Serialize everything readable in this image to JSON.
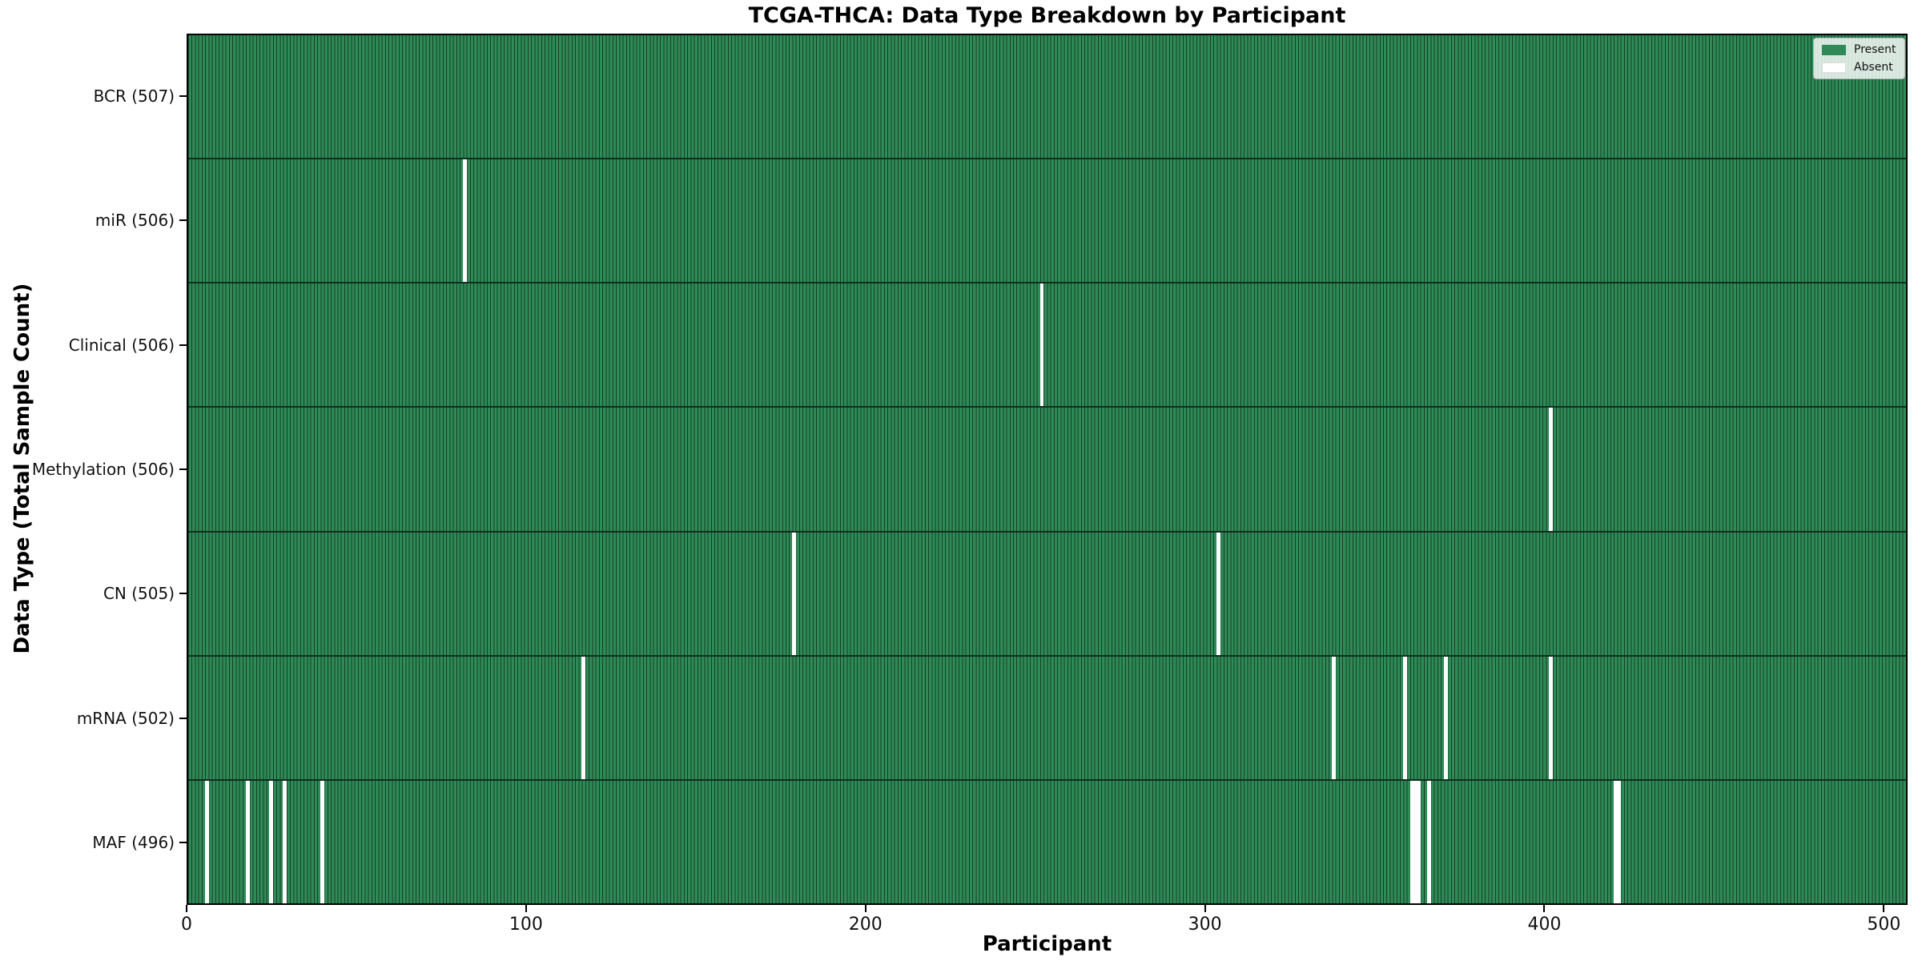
{
  "chart_data": {
    "type": "heatmap",
    "title": "TCGA-THCA: Data Type Breakdown by Participant",
    "xlabel": "Participant",
    "ylabel": "Data Type (Total Sample Count)",
    "total_participants": 507,
    "x_ticks": [
      0,
      100,
      200,
      300,
      400,
      500
    ],
    "x_range": [
      0,
      507
    ],
    "grid": false,
    "legend_position": "upper right",
    "colors": {
      "present": "#2e8b57",
      "edge": "#153f27",
      "absent": "#ffffff",
      "row_divider": "#0f2f1e"
    },
    "legend": [
      {
        "key": "present",
        "label": "Present",
        "color": "#2e8b57"
      },
      {
        "key": "absent",
        "label": "Absent",
        "color": "#ffffff"
      }
    ],
    "rows": [
      {
        "key": "bcr",
        "label": "BCR (507)",
        "name": "BCR",
        "count": 507,
        "absent": []
      },
      {
        "key": "mir",
        "label": "miR (506)",
        "name": "miR",
        "count": 506,
        "absent": [
          81
        ]
      },
      {
        "key": "clinical",
        "label": "Clinical (506)",
        "name": "Clinical",
        "count": 506,
        "absent": [
          251
        ]
      },
      {
        "key": "methylation",
        "label": "Methylation (506)",
        "name": "Methylation",
        "count": 506,
        "absent": [
          401
        ]
      },
      {
        "key": "cn",
        "label": "CN (505)",
        "name": "CN",
        "count": 505,
        "absent": [
          178,
          303
        ]
      },
      {
        "key": "mrna",
        "label": "mRNA (502)",
        "name": "mRNA",
        "count": 502,
        "absent": [
          116,
          337,
          358,
          370,
          401
        ]
      },
      {
        "key": "maf",
        "label": "MAF (496)",
        "name": "MAF",
        "count": 496,
        "absent": [
          5,
          17,
          24,
          28,
          39,
          360,
          361,
          362,
          365,
          420,
          421
        ]
      }
    ]
  }
}
